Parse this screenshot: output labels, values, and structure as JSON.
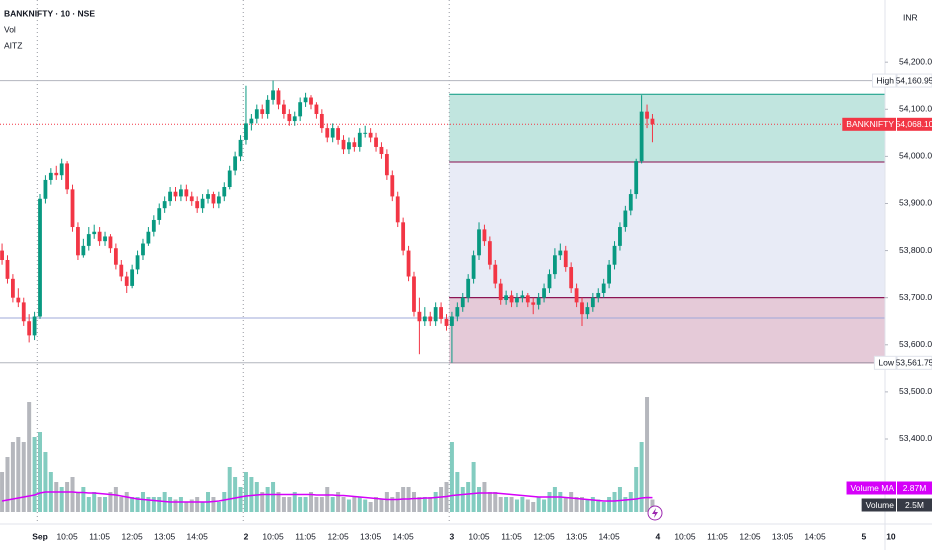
{
  "chart_data": {
    "type": "candlestick",
    "title": "BANKNIFTY · 10 · NSE",
    "indicators": [
      "Vol",
      "AITZ"
    ],
    "currency": "INR",
    "up_color": "#089981",
    "down_color": "#f23645",
    "ylim": [
      53245,
      54332
    ],
    "yticks": [
      {
        "value": 54200,
        "label": "54,200.00"
      },
      {
        "value": 54100,
        "label": "54,100.00"
      },
      {
        "value": 54000,
        "label": "54,000.00"
      },
      {
        "value": 53900,
        "label": "53,900.00"
      },
      {
        "value": 53800,
        "label": "53,800.00"
      },
      {
        "value": 53700,
        "label": "53,700.00"
      },
      {
        "value": 53600,
        "label": "53,600.00"
      },
      {
        "value": 53500,
        "label": "53,500.00"
      },
      {
        "value": 53400,
        "label": "53,400.00"
      }
    ],
    "categories": [
      null,
      null,
      null,
      null,
      null,
      null,
      null,
      "Sep",
      null,
      null,
      null,
      null,
      "10:05",
      null,
      null,
      null,
      null,
      null,
      "11:05",
      null,
      null,
      null,
      null,
      null,
      "12:05",
      null,
      null,
      null,
      null,
      null,
      "13:05",
      null,
      null,
      null,
      null,
      null,
      "14:05",
      null,
      null,
      null,
      null,
      null,
      null,
      null,
      null,
      "2",
      null,
      null,
      null,
      null,
      "10:05",
      null,
      null,
      null,
      null,
      null,
      "11:05",
      null,
      null,
      null,
      null,
      null,
      "12:05",
      null,
      null,
      null,
      null,
      null,
      "13:05",
      null,
      null,
      null,
      null,
      null,
      "14:05",
      null,
      null,
      null,
      null,
      null,
      null,
      null,
      null,
      "3",
      null,
      null,
      null,
      null,
      "10:05",
      null,
      null,
      null,
      null,
      null,
      "11:05",
      null,
      null,
      null,
      null,
      null,
      "12:05",
      null,
      null,
      null,
      null,
      null,
      "13:05",
      null,
      null,
      null,
      null,
      null,
      "14:05",
      null,
      null,
      null,
      null,
      null,
      null,
      null,
      null,
      "4",
      null,
      null,
      null,
      null,
      "10:05",
      null,
      null,
      null,
      null,
      null,
      "11:05",
      null,
      null,
      null,
      null,
      null,
      "12:05",
      null,
      null,
      null,
      null,
      null,
      "13:05",
      null,
      null,
      null,
      null,
      null,
      "14:05",
      null,
      null,
      null,
      null,
      null,
      null,
      null,
      null,
      "5",
      null,
      null,
      null,
      null,
      "10"
    ],
    "ohlc": [
      [
        53800,
        53815,
        53770,
        53780
      ],
      [
        53780,
        53790,
        53730,
        53740
      ],
      [
        53740,
        53750,
        53690,
        53700
      ],
      [
        53700,
        53720,
        53680,
        53690
      ],
      [
        53690,
        53700,
        53640,
        53650
      ],
      [
        53650,
        53665,
        53605,
        53620
      ],
      [
        53620,
        53670,
        53610,
        53660
      ],
      [
        53660,
        53920,
        53655,
        53910
      ],
      [
        53910,
        53960,
        53900,
        53950
      ],
      [
        53950,
        53975,
        53940,
        53965
      ],
      [
        53965,
        53980,
        53950,
        53960
      ],
      [
        53960,
        53995,
        53950,
        53985
      ],
      [
        53985,
        53990,
        53920,
        53930
      ],
      [
        53930,
        53940,
        53840,
        53850
      ],
      [
        53850,
        53860,
        53780,
        53790
      ],
      [
        53790,
        53825,
        53785,
        53810
      ],
      [
        53810,
        53850,
        53800,
        53835
      ],
      [
        53835,
        53855,
        53825,
        53840
      ],
      [
        53840,
        53850,
        53810,
        53820
      ],
      [
        53820,
        53840,
        53810,
        53830
      ],
      [
        53830,
        53835,
        53795,
        53805
      ],
      [
        53805,
        53815,
        53760,
        53770
      ],
      [
        53770,
        53780,
        53735,
        53745
      ],
      [
        53745,
        53755,
        53710,
        53725
      ],
      [
        53725,
        53770,
        53720,
        53760
      ],
      [
        53760,
        53800,
        53750,
        53790
      ],
      [
        53790,
        53825,
        53780,
        53815
      ],
      [
        53815,
        53850,
        53810,
        53840
      ],
      [
        53840,
        53875,
        53830,
        53865
      ],
      [
        53865,
        53900,
        53855,
        53890
      ],
      [
        53890,
        53915,
        53880,
        53905
      ],
      [
        53905,
        53935,
        53895,
        53925
      ],
      [
        53925,
        53935,
        53905,
        53915
      ],
      [
        53915,
        53940,
        53905,
        53930
      ],
      [
        53930,
        53940,
        53905,
        53915
      ],
      [
        53915,
        53925,
        53895,
        53905
      ],
      [
        53905,
        53915,
        53880,
        53890
      ],
      [
        53890,
        53920,
        53880,
        53910
      ],
      [
        53910,
        53930,
        53900,
        53920
      ],
      [
        53920,
        53925,
        53890,
        53900
      ],
      [
        53900,
        53925,
        53890,
        53915
      ],
      [
        53915,
        53945,
        53905,
        53935
      ],
      [
        53935,
        53980,
        53930,
        53970
      ],
      [
        53970,
        54010,
        53960,
        54000
      ],
      [
        54000,
        54045,
        53990,
        54035
      ],
      [
        54035,
        54150,
        54025,
        54070
      ],
      [
        54070,
        54090,
        54055,
        54080
      ],
      [
        54080,
        54110,
        54070,
        54100
      ],
      [
        54100,
        54110,
        54080,
        54090
      ],
      [
        54090,
        54130,
        54080,
        54120
      ],
      [
        54120,
        54160.95,
        54110,
        54140
      ],
      [
        54140,
        54145,
        54100,
        54110
      ],
      [
        54110,
        54120,
        54080,
        54090
      ],
      [
        54090,
        54100,
        54065,
        54075
      ],
      [
        54075,
        54095,
        54065,
        54085
      ],
      [
        54085,
        54125,
        54075,
        54115
      ],
      [
        54115,
        54135,
        54105,
        54125
      ],
      [
        54125,
        54130,
        54100,
        54110
      ],
      [
        54110,
        54115,
        54080,
        54090
      ],
      [
        54090,
        54100,
        54050,
        54060
      ],
      [
        54060,
        54070,
        54030,
        54040
      ],
      [
        54040,
        54070,
        54030,
        54060
      ],
      [
        54060,
        54065,
        54025,
        54035
      ],
      [
        54035,
        54045,
        54005,
        54015
      ],
      [
        54015,
        54040,
        54005,
        54030
      ],
      [
        54030,
        54040,
        54010,
        54020
      ],
      [
        54020,
        54060,
        54010,
        54050
      ],
      [
        54050,
        54065,
        54040,
        54050
      ],
      [
        54050,
        54060,
        54030,
        54040
      ],
      [
        54040,
        54050,
        54010,
        54020
      ],
      [
        54020,
        54030,
        53995,
        54005
      ],
      [
        54005,
        54015,
        53950,
        53960
      ],
      [
        53960,
        53970,
        53905,
        53915
      ],
      [
        53915,
        53925,
        53850,
        53860
      ],
      [
        53860,
        53870,
        53790,
        53800
      ],
      [
        53800,
        53810,
        53735,
        53745
      ],
      [
        53745,
        53755,
        53660,
        53670
      ],
      [
        53670,
        53700,
        53580,
        53650
      ],
      [
        53650,
        53680,
        53640,
        53660
      ],
      [
        53660,
        53670,
        53640,
        53650
      ],
      [
        53650,
        53690,
        53640,
        53680
      ],
      [
        53680,
        53690,
        53645,
        53655
      ],
      [
        53655,
        53665,
        53630,
        53640
      ],
      [
        53640,
        53670,
        53561.75,
        53660
      ],
      [
        53660,
        53690,
        53650,
        53680
      ],
      [
        53680,
        53710,
        53670,
        53700
      ],
      [
        53700,
        53750,
        53690,
        53740
      ],
      [
        53740,
        53800,
        53730,
        53790
      ],
      [
        53790,
        53860,
        53780,
        53845
      ],
      [
        53845,
        53855,
        53810,
        53820
      ],
      [
        53820,
        53830,
        53760,
        53770
      ],
      [
        53770,
        53780,
        53720,
        53730
      ],
      [
        53730,
        53740,
        53685,
        53695
      ],
      [
        53695,
        53715,
        53685,
        53705
      ],
      [
        53705,
        53715,
        53680,
        53690
      ],
      [
        53690,
        53710,
        53680,
        53700
      ],
      [
        53700,
        53715,
        53690,
        53705
      ],
      [
        53705,
        53710,
        53680,
        53690
      ],
      [
        53690,
        53700,
        53665,
        53685
      ],
      [
        53685,
        53710,
        53675,
        53700
      ],
      [
        53700,
        53730,
        53690,
        53720
      ],
      [
        53720,
        53760,
        53710,
        53750
      ],
      [
        53750,
        53805,
        53740,
        53790
      ],
      [
        53790,
        53815,
        53780,
        53800
      ],
      [
        53800,
        53810,
        53755,
        53765
      ],
      [
        53765,
        53775,
        53710,
        53720
      ],
      [
        53720,
        53730,
        53680,
        53690
      ],
      [
        53690,
        53700,
        53640,
        53665
      ],
      [
        53665,
        53690,
        53655,
        53680
      ],
      [
        53680,
        53710,
        53670,
        53700
      ],
      [
        53700,
        53720,
        53690,
        53710
      ],
      [
        53710,
        53740,
        53700,
        53730
      ],
      [
        53730,
        53780,
        53720,
        53770
      ],
      [
        53770,
        53820,
        53760,
        53810
      ],
      [
        53810,
        53860,
        53800,
        53850
      ],
      [
        53850,
        53895,
        53840,
        53885
      ],
      [
        53885,
        53930,
        53875,
        53920
      ],
      [
        53920,
        53995,
        53910,
        53990
      ],
      [
        53990,
        54130,
        53985,
        54095
      ],
      [
        54095,
        54110,
        54060,
        54080
      ],
      [
        54080,
        54090,
        54030,
        54068.1
      ],
      null,
      null,
      null,
      null,
      null,
      null,
      null,
      null,
      null,
      null,
      null,
      null,
      null,
      null,
      null,
      null,
      null,
      null,
      null,
      null,
      null,
      null,
      null,
      null,
      null,
      null,
      null,
      null,
      null,
      null,
      null,
      null,
      null,
      null,
      null,
      null,
      null,
      null,
      null,
      null,
      null,
      null,
      null,
      null
    ],
    "volume": {
      "name": "Volume",
      "vlim": [
        0,
        24
      ],
      "up_color": "rgba(8,153,129,0.5)",
      "down_color": "rgba(120,123,134,0.55)",
      "tag_color": "#363a45",
      "last_label": "2.5M",
      "values": [
        8,
        11,
        14,
        15,
        14,
        22,
        15,
        16,
        12,
        8,
        6,
        5,
        6,
        7,
        4,
        5,
        3,
        4,
        3,
        3,
        4,
        5,
        3,
        4,
        3,
        3,
        4,
        3,
        3,
        3,
        4,
        3,
        2.5,
        3,
        2,
        2.5,
        3,
        2,
        4,
        3,
        2,
        4,
        9,
        7,
        5,
        8,
        7,
        6,
        4,
        5,
        6,
        4,
        3,
        3,
        4,
        3,
        3,
        4,
        3,
        3,
        5,
        3,
        4,
        3,
        2.5,
        3,
        3,
        2.5,
        2,
        3,
        2.5,
        4,
        3,
        4,
        5,
        5,
        4,
        3,
        3,
        3,
        4,
        5,
        6,
        14,
        8,
        5,
        6,
        10,
        5,
        6,
        4,
        4,
        3,
        3,
        3,
        2.5,
        3,
        2.5,
        2,
        3,
        2.5,
        4,
        5,
        4,
        3,
        4,
        3,
        3,
        2.5,
        3,
        2.5,
        2,
        3,
        4,
        5,
        3,
        4,
        9,
        14,
        23,
        2.5,
        null,
        null,
        null,
        null,
        null,
        null,
        null,
        null,
        null,
        null,
        null,
        null,
        null,
        null,
        null,
        null,
        null,
        null,
        null,
        null,
        null,
        null,
        null,
        null,
        null,
        null,
        null,
        null,
        null,
        null,
        null,
        null,
        null,
        null,
        null,
        null,
        null,
        null,
        null,
        null,
        null,
        null,
        null,
        null
      ]
    },
    "volume_ma": {
      "name": "Volume MA",
      "color": "#d500f9",
      "last_label": "2.87M",
      "values": [
        2.2,
        2.4,
        2.6,
        2.8,
        3.0,
        3.2,
        3.4,
        3.8,
        4.0,
        4.0,
        4.0,
        4.0,
        4.0,
        4.0,
        3.9,
        3.9,
        3.8,
        3.8,
        3.7,
        3.6,
        3.5,
        3.4,
        3.2,
        3.0,
        2.8,
        2.6,
        2.5,
        2.4,
        2.3,
        2.2,
        2.1,
        2.0,
        2.0,
        2.0,
        2.0,
        2.0,
        2.0,
        2.0,
        2.0,
        2.1,
        2.2,
        2.4,
        2.6,
        2.8,
        3.0,
        3.2,
        3.3,
        3.4,
        3.5,
        3.5,
        3.5,
        3.5,
        3.5,
        3.5,
        3.5,
        3.5,
        3.5,
        3.5,
        3.4,
        3.4,
        3.4,
        3.4,
        3.3,
        3.3,
        3.2,
        3.1,
        3.0,
        2.9,
        2.8,
        2.7,
        2.6,
        2.5,
        2.5,
        2.5,
        2.6,
        2.6,
        2.7,
        2.7,
        2.8,
        2.8,
        2.9,
        3.0,
        3.1,
        3.3,
        3.4,
        3.5,
        3.6,
        3.7,
        3.8,
        3.8,
        3.8,
        3.8,
        3.7,
        3.6,
        3.5,
        3.4,
        3.3,
        3.2,
        3.1,
        3.0,
        3.0,
        3.0,
        3.0,
        3.0,
        2.9,
        2.8,
        2.7,
        2.6,
        2.5,
        2.4,
        2.3,
        2.2,
        2.2,
        2.2,
        2.3,
        2.4,
        2.5,
        2.6,
        2.8,
        2.9,
        2.87,
        null,
        null,
        null,
        null,
        null,
        null,
        null,
        null,
        null,
        null,
        null,
        null,
        null,
        null,
        null,
        null,
        null,
        null,
        null,
        null,
        null,
        null,
        null,
        null,
        null,
        null,
        null,
        null,
        null,
        null,
        null,
        null,
        null,
        null,
        null,
        null,
        null,
        null,
        null,
        null,
        null,
        null,
        null,
        null
      ]
    },
    "zones": [
      {
        "top": 54132,
        "bottom": 53988,
        "color": "rgba(8,153,129,0.25)",
        "border": "#089981"
      },
      {
        "top": 53988,
        "bottom": 53700,
        "color": "rgba(121,134,203,0.17)",
        "border": "#880e4f"
      },
      {
        "top": 53700,
        "bottom": 53561.75,
        "color": "rgba(136,14,79,0.22)",
        "border": "#880e4f"
      }
    ],
    "hlines": [
      {
        "value": 53657,
        "color": "#9fa8da"
      }
    ],
    "price_tags": [
      {
        "name": "High",
        "value": 54160.95,
        "label": "54,160.95",
        "color": "#b2b5be",
        "tag_color": "#ffffff",
        "text_color": "#131722",
        "dashed": false
      },
      {
        "name": "BANKNIFTY",
        "value": 54068.1,
        "label": "54,068.10",
        "color": "#f23645",
        "tag_color": "#f23645",
        "text_color": "#ffffff",
        "dashed": true
      },
      {
        "name": "Low",
        "value": 53561.75,
        "label": "53,561.75",
        "color": "#b2b5be",
        "tag_color": "#ffffff",
        "text_color": "#131722",
        "dashed": false
      }
    ]
  }
}
